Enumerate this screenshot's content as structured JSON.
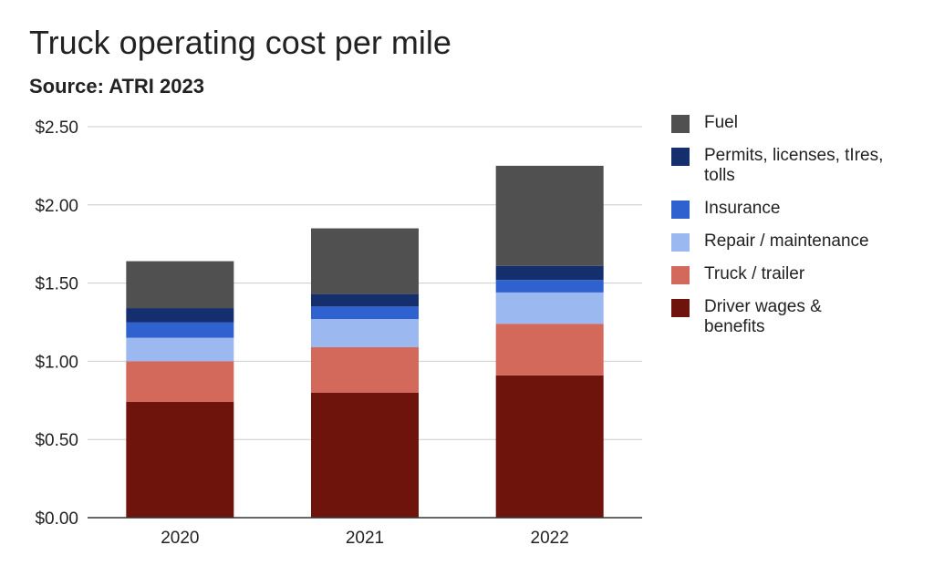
{
  "chart_data": {
    "type": "bar",
    "stacked": true,
    "title": "Truck operating cost per mile",
    "subtitle": "Source: ATRI 2023",
    "xlabel": "",
    "ylabel": "",
    "categories": [
      "2020",
      "2021",
      "2022"
    ],
    "ylim": [
      0,
      2.5
    ],
    "yticks": [
      0,
      0.5,
      1.0,
      1.5,
      2.0,
      2.5
    ],
    "ytick_labels": [
      "$0.00",
      "$0.50",
      "$1.00",
      "$1.50",
      "$2.00",
      "$2.50"
    ],
    "grid": true,
    "legend_position": "right",
    "series": [
      {
        "name": "Driver wages & benefits",
        "color": "#6e140c",
        "values": [
          0.74,
          0.8,
          0.91
        ]
      },
      {
        "name": "Truck / trailer",
        "color": "#d3695a",
        "values": [
          0.26,
          0.29,
          0.33
        ]
      },
      {
        "name": "Repair / maintenance",
        "color": "#9bb8f0",
        "values": [
          0.15,
          0.18,
          0.2
        ]
      },
      {
        "name": "Insurance",
        "color": "#2f62cf",
        "values": [
          0.1,
          0.08,
          0.08
        ]
      },
      {
        "name": "Permits, licenses, tIres, tolls",
        "color": "#142e6e",
        "values": [
          0.09,
          0.08,
          0.09
        ]
      },
      {
        "name": "Fuel",
        "color": "#505050",
        "values": [
          0.3,
          0.42,
          0.64
        ]
      }
    ]
  }
}
